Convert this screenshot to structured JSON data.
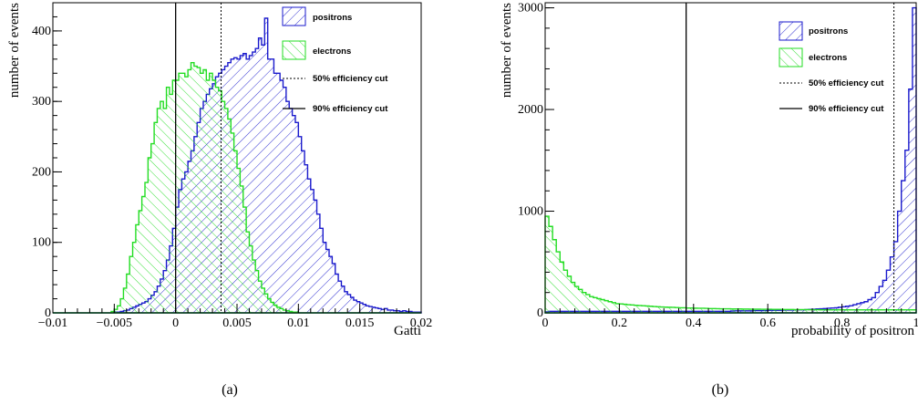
{
  "chart_data": [
    {
      "type": "histogram",
      "caption": "(a)",
      "xlabel": "Gatti",
      "ylabel": "number of events",
      "xlim": [
        -0.01,
        0.02
      ],
      "ylim": [
        0,
        440
      ],
      "x_ticks": [
        "−0.01",
        "−0.005",
        "0",
        "0.005",
        "0.01",
        "0.015",
        "0.02"
      ],
      "x_tick_values": [
        -0.01,
        -0.005,
        0,
        0.005,
        0.01,
        0.015,
        0.02
      ],
      "y_ticks": [
        "0",
        "100",
        "200",
        "300",
        "400"
      ],
      "y_tick_values": [
        0,
        100,
        200,
        300,
        400
      ],
      "bin_start": -0.01,
      "bin_width": 0.00025,
      "series": [
        {
          "name": "positrons",
          "color": "#1a1acc",
          "values": [
            0,
            0,
            0,
            0,
            0,
            0,
            0,
            0,
            0,
            0,
            0,
            0,
            0,
            0,
            0,
            0,
            0,
            0,
            0,
            0,
            1,
            1,
            2,
            3,
            4,
            6,
            8,
            10,
            12,
            14,
            16,
            20,
            25,
            30,
            38,
            48,
            60,
            75,
            95,
            120,
            150,
            175,
            190,
            200,
            215,
            230,
            250,
            270,
            290,
            300,
            310,
            318,
            325,
            335,
            340,
            345,
            350,
            355,
            360,
            362,
            360,
            365,
            368,
            360,
            365,
            370,
            375,
            390,
            380,
            418,
            360,
            360,
            340,
            340,
            330,
            320,
            300,
            290,
            280,
            270,
            250,
            230,
            210,
            190,
            175,
            160,
            140,
            120,
            100,
            90,
            80,
            70,
            55,
            45,
            38,
            30,
            26,
            22,
            18,
            16,
            14,
            12,
            10,
            9,
            8,
            7,
            6,
            5,
            6,
            4,
            4,
            3,
            3,
            2,
            3,
            2,
            2,
            1,
            1,
            1
          ]
        },
        {
          "name": "electrons",
          "color": "#22dd22",
          "values": [
            0,
            0,
            0,
            0,
            0,
            0,
            0,
            0,
            0,
            0,
            0,
            0,
            0,
            0,
            0,
            0,
            0,
            0,
            0,
            2,
            5,
            10,
            20,
            35,
            55,
            80,
            100,
            125,
            145,
            165,
            185,
            220,
            240,
            270,
            290,
            300,
            290,
            320,
            310,
            330,
            330,
            340,
            340,
            335,
            345,
            355,
            350,
            348,
            340,
            345,
            330,
            340,
            330,
            320,
            315,
            300,
            290,
            275,
            255,
            230,
            205,
            180,
            150,
            115,
            95,
            75,
            60,
            45,
            35,
            27,
            20,
            15,
            11,
            8,
            6,
            4,
            3,
            2,
            1,
            1,
            0,
            0,
            0,
            0,
            0,
            0,
            0,
            0,
            0,
            0,
            0,
            0,
            0,
            0,
            0,
            0,
            0,
            0,
            0,
            0,
            0,
            0,
            0,
            0,
            0,
            0,
            0,
            0,
            0,
            0,
            0,
            0,
            0,
            0,
            0,
            0,
            0,
            0,
            0,
            0
          ]
        }
      ],
      "cuts": [
        {
          "name": "50% efficiency cut",
          "x": 0.0037,
          "style": "dotted"
        },
        {
          "name": "90% efficiency cut",
          "x": 0.0,
          "style": "solid"
        }
      ]
    },
    {
      "type": "histogram",
      "caption": "(b)",
      "xlabel": "probability of positron",
      "ylabel": "number of events",
      "xlim": [
        0,
        1
      ],
      "ylim": [
        0,
        3050
      ],
      "x_ticks": [
        "0",
        "0.2",
        "0.4",
        "0.6",
        "0.8",
        "1"
      ],
      "x_tick_values": [
        0,
        0.2,
        0.4,
        0.6,
        0.8,
        1
      ],
      "y_ticks": [
        "0",
        "1000",
        "2000",
        "3000"
      ],
      "y_tick_values": [
        0,
        1000,
        2000,
        3000
      ],
      "bin_start": 0,
      "bin_width": 0.01,
      "series": [
        {
          "name": "positrons",
          "color": "#1a1acc",
          "values": [
            10,
            15,
            15,
            15,
            15,
            15,
            15,
            15,
            15,
            15,
            15,
            15,
            15,
            15,
            15,
            15,
            15,
            15,
            15,
            15,
            15,
            15,
            15,
            15,
            15,
            15,
            15,
            15,
            15,
            15,
            15,
            15,
            15,
            15,
            15,
            15,
            15,
            15,
            15,
            15,
            15,
            15,
            15,
            15,
            15,
            15,
            15,
            15,
            15,
            15,
            18,
            20,
            20,
            20,
            20,
            20,
            22,
            22,
            22,
            22,
            25,
            25,
            25,
            25,
            28,
            28,
            28,
            30,
            30,
            30,
            32,
            34,
            35,
            38,
            40,
            42,
            45,
            48,
            50,
            55,
            60,
            65,
            70,
            80,
            90,
            100,
            110,
            130,
            150,
            200,
            260,
            320,
            420,
            550,
            700,
            1000,
            1300,
            1600,
            2200,
            3000
          ]
        },
        {
          "name": "electrons",
          "color": "#22dd22",
          "values": [
            950,
            850,
            720,
            600,
            500,
            420,
            360,
            300,
            260,
            230,
            200,
            180,
            160,
            150,
            140,
            130,
            120,
            110,
            100,
            90,
            88,
            85,
            80,
            78,
            75,
            72,
            70,
            68,
            65,
            62,
            60,
            58,
            56,
            55,
            54,
            52,
            50,
            50,
            48,
            48,
            46,
            45,
            45,
            44,
            42,
            42,
            41,
            40,
            40,
            40,
            38,
            38,
            38,
            37,
            37,
            36,
            36,
            36,
            35,
            35,
            35,
            34,
            34,
            34,
            33,
            33,
            33,
            32,
            32,
            32,
            32,
            31,
            31,
            31,
            30,
            30,
            30,
            30,
            30,
            30,
            30,
            30,
            30,
            30,
            30,
            30,
            30,
            30,
            30,
            30,
            30,
            30,
            30,
            30,
            30,
            30,
            30,
            30,
            30,
            30
          ]
        }
      ],
      "cuts": [
        {
          "name": "50% efficiency cut",
          "x": 0.94,
          "style": "dotted"
        },
        {
          "name": "90% efficiency cut",
          "x": 0.38,
          "style": "solid"
        }
      ]
    }
  ]
}
